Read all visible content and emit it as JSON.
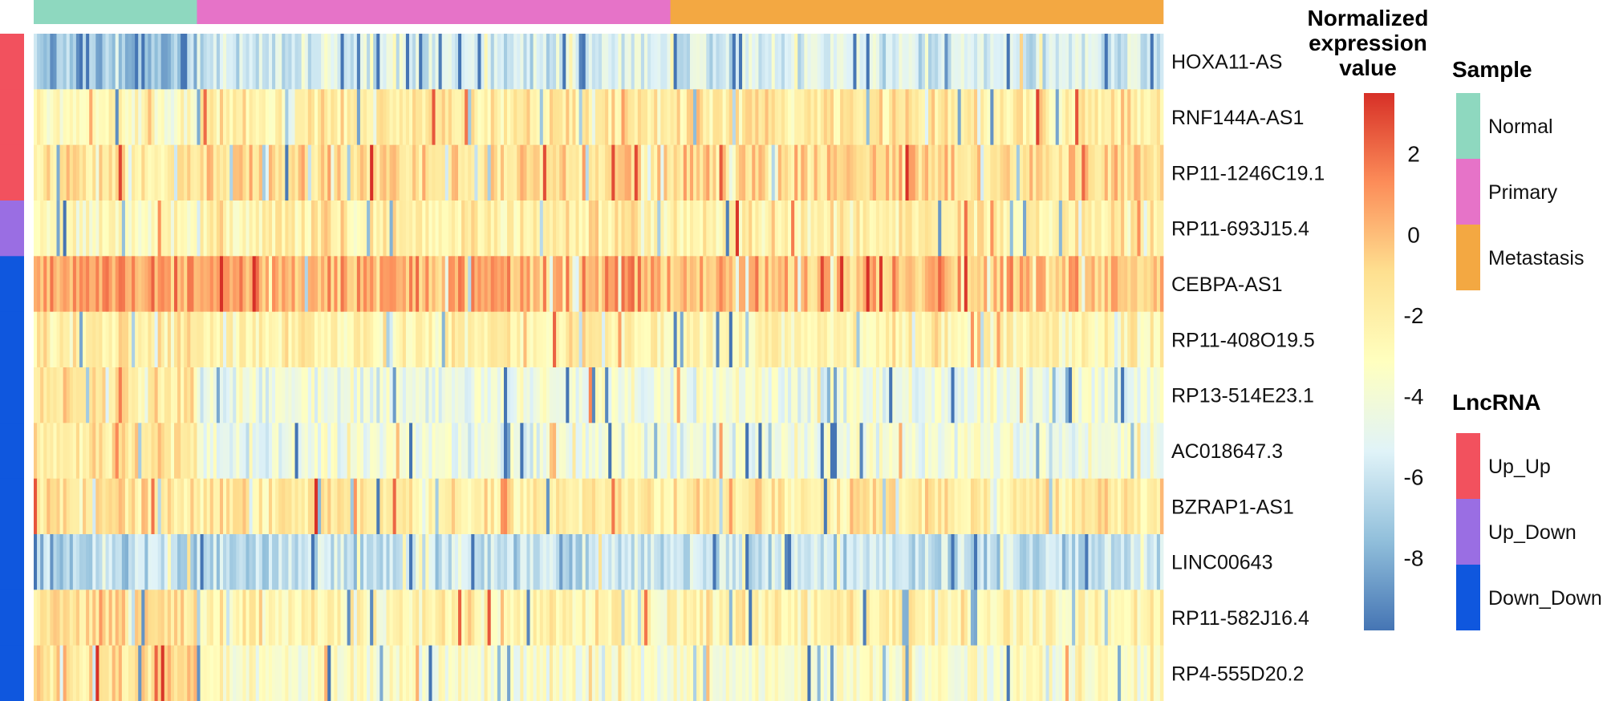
{
  "chart_data": {
    "type": "heatmap",
    "rows": [
      "HOXA11-AS",
      "RNF144A-AS1",
      "RP11-1246C19.1",
      "RP11-693J15.4",
      "CEBPA-AS1",
      "RP11-408O19.5",
      "RP13-514E23.1",
      "AC018647.3",
      "BZRAP1-AS1",
      "LINC00643",
      "RP11-582J16.4",
      "RP4-555D20.2"
    ],
    "row_groups": [
      "Up_Up",
      "Up_Up",
      "Up_Up",
      "Up_Down",
      "Down_Down",
      "Down_Down",
      "Down_Down",
      "Down_Down",
      "Down_Down",
      "Down_Down",
      "Down_Down",
      "Down_Down"
    ],
    "column_groups": [
      {
        "name": "Normal",
        "count": 50
      },
      {
        "name": "Primary",
        "count": 145
      },
      {
        "name": "Metastasis",
        "count": 151
      }
    ],
    "row_typical_values": {
      "Normal": [
        -7.5,
        -3.0,
        -1.5,
        -3.0,
        0.8,
        -2.0,
        -1.5,
        -1.8,
        -1.5,
        -6.5,
        -1.2,
        -1.2
      ],
      "Primary": [
        -5.5,
        -1.8,
        -1.0,
        -2.0,
        0.3,
        -2.3,
        -4.3,
        -4.5,
        -1.8,
        -6.0,
        -2.5,
        -3.5
      ],
      "Metastasis": [
        -5.5,
        -1.8,
        -0.8,
        -2.0,
        0.0,
        -2.5,
        -4.3,
        -4.2,
        -1.6,
        -6.0,
        -2.5,
        -3.5
      ]
    },
    "colorbar": {
      "title": [
        "Normalized",
        "expression",
        "value"
      ],
      "ticks": [
        2,
        0,
        -2,
        -4,
        -6,
        -8
      ],
      "range": [
        -9.8,
        3.5
      ],
      "colors": [
        "#4575b4",
        "#91bfdb",
        "#e0f3f8",
        "#ffffbf",
        "#fee090",
        "#fc8d59",
        "#d73027"
      ]
    },
    "legends": [
      {
        "title": "Sample",
        "items": [
          {
            "label": "Normal",
            "color": "#8ed8bf"
          },
          {
            "label": "Primary",
            "color": "#e673c8"
          },
          {
            "label": "Metastasis",
            "color": "#f3a842"
          }
        ]
      },
      {
        "title": "LncRNA",
        "items": [
          {
            "label": "Up_Up",
            "color": "#f2515e"
          },
          {
            "label": "Up_Down",
            "color": "#9a6ee3"
          },
          {
            "label": "Down_Down",
            "color": "#0f57de"
          }
        ]
      }
    ]
  }
}
